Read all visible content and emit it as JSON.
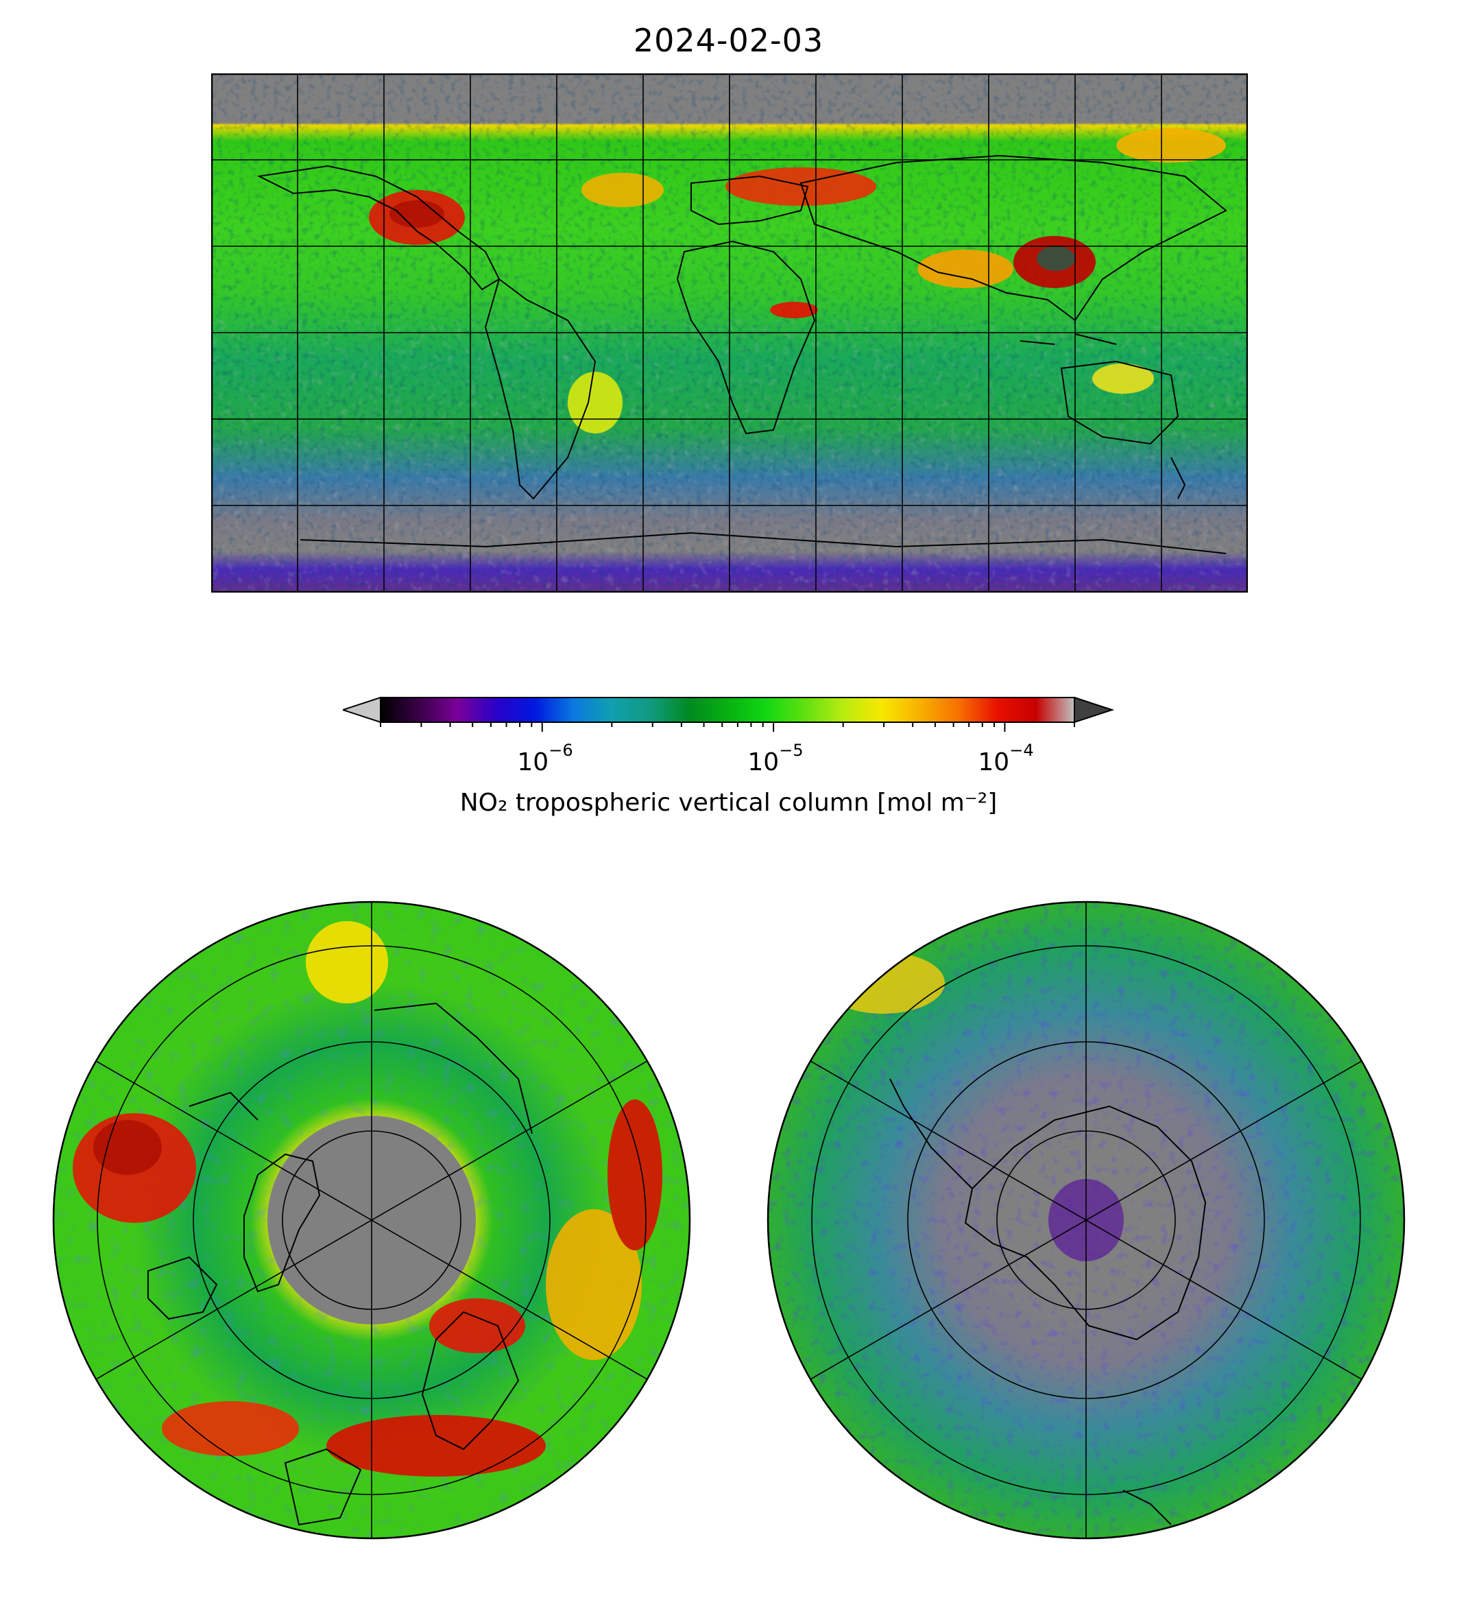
{
  "title": "2024-02-03",
  "colorbar": {
    "label": "NO₂ tropospheric vertical column [mol m⁻²]",
    "scale": "log",
    "range": [
      2e-07,
      0.0002
    ],
    "ticks": [
      {
        "base": "10",
        "exp": "−6",
        "value": 1e-06
      },
      {
        "base": "10",
        "exp": "−5",
        "value": 1e-05
      },
      {
        "base": "10",
        "exp": "−4",
        "value": 0.0001
      }
    ],
    "colors": [
      "#000000",
      "#3a0048",
      "#7a009a",
      "#2a00c8",
      "#0018e0",
      "#0a78e0",
      "#10a0b0",
      "#109a80",
      "#008a20",
      "#06b010",
      "#10d812",
      "#60e010",
      "#b8ec10",
      "#f8e800",
      "#f8b000",
      "#f87000",
      "#e81000",
      "#c80000",
      "#c0c0c0"
    ],
    "under_color": "#c8c8c8",
    "over_color": "#404040"
  },
  "maps": [
    {
      "name": "world",
      "projection": "Plate Carree"
    },
    {
      "name": "north-polar",
      "projection": "North Polar Stereographic"
    },
    {
      "name": "south-polar",
      "projection": "South Polar Stereographic"
    }
  ]
}
